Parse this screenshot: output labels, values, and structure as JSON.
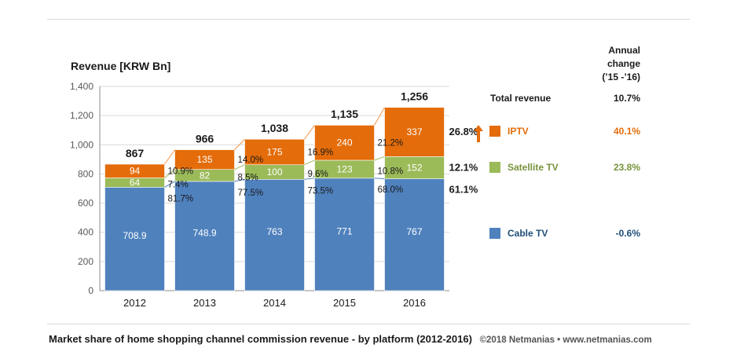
{
  "chart_data": {
    "type": "bar",
    "stacked": true,
    "ylabel": "Revenue [KRW Bn]",
    "ylim": [
      0,
      1400
    ],
    "yticks": [
      "0",
      "200",
      "400",
      "600",
      "800",
      "1,000",
      "1,200",
      "1,400"
    ],
    "grid": true,
    "categories": [
      "2012",
      "2013",
      "2014",
      "2015",
      "2016"
    ],
    "totals": [
      "867",
      "966",
      "1,038",
      "1,135",
      "1,256"
    ],
    "total_values": [
      867,
      966,
      1038,
      1135,
      1256
    ],
    "series": [
      {
        "name": "Cable TV",
        "values": [
          708.9,
          748.9,
          763,
          771,
          767
        ],
        "labels": [
          "708.9",
          "748.9",
          "763",
          "771",
          "767"
        ],
        "shares": [
          "81.7%",
          "77.5%",
          "73.5%",
          "68.0%",
          "61.1%"
        ],
        "color": "#4f81bd"
      },
      {
        "name": "Satellite TV",
        "values": [
          64,
          82,
          100,
          123,
          152
        ],
        "labels": [
          "64",
          "82",
          "100",
          "123",
          "152"
        ],
        "shares": [
          "7.4%",
          "8.5%",
          "9.6%",
          "10.8%",
          "12.1%"
        ],
        "color": "#9bbb59"
      },
      {
        "name": "IPTV",
        "values": [
          94,
          135,
          175,
          240,
          337
        ],
        "labels": [
          "94",
          "135",
          "175",
          "240",
          "337"
        ],
        "shares": [
          "10.9%",
          "14.0%",
          "16.9%",
          "21.2%",
          "26.8%"
        ],
        "color": "#e46c0a"
      }
    ]
  },
  "legend": {
    "header_line1": "Annual",
    "header_line2": "change",
    "header_line3": "(’15 -’16)",
    "rows": [
      {
        "label": "Total revenue",
        "value": "10.7%"
      },
      {
        "label": "IPTV",
        "value": "40.1%",
        "color": "#e46c0a"
      },
      {
        "label": "Satellite TV",
        "value": "23.8%",
        "color": "#77933c"
      },
      {
        "label": "Cable TV",
        "value": "-0.6%",
        "color": "#1f4e79"
      }
    ]
  },
  "footer": {
    "caption": "Market share of home shopping channel commission revenue - by platform (2012-2016)",
    "copyright": "©2018 Netmanias • www.netmanias.com"
  }
}
